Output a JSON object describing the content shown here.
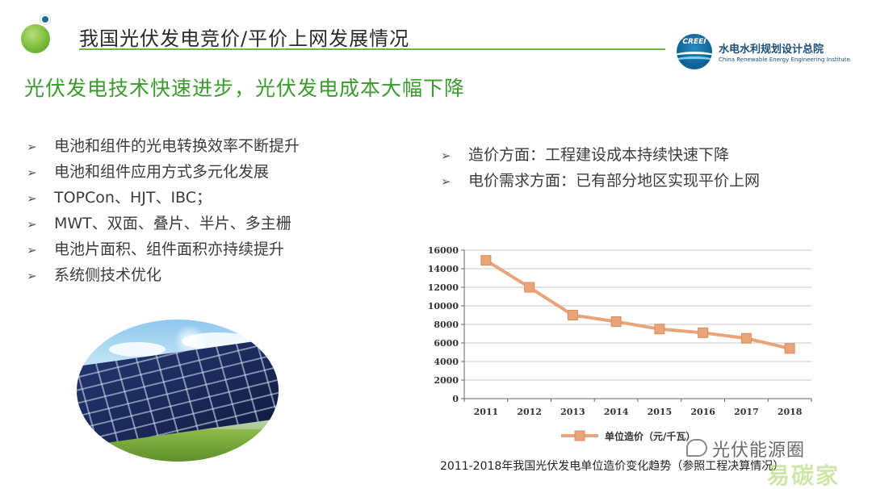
{
  "header": {
    "title": "我国光伏发电竞价/平价上网发展情况",
    "brand_name": "水电水利规划设计总院",
    "brand_en": "China Renewable Energy Engineering Institute",
    "brand_mark": "CREEI",
    "accent_color": "#79b43c"
  },
  "subtitle": "光伏发电技术快速进步，光伏发电成本大幅下降",
  "bullet_icon": "arrow-right-icon",
  "left_bullets": [
    "电池和组件的光电转换效率不断提升",
    "电池和组件应用方式多元化发展",
    "TOPCon、HJT、IBC；",
    "MWT、双面、叠片、半片、多主栅",
    "电池片面积、组件面积亦持续提升",
    "系统侧技术优化"
  ],
  "right_bullets": [
    "造价方面：工程建设成本持续快速下降",
    "电价需求方面：已有部分地区实现平价上网"
  ],
  "chart_data": {
    "type": "line",
    "x": [
      "2011",
      "2012",
      "2013",
      "2014",
      "2015",
      "2016",
      "2017",
      "2018"
    ],
    "series": [
      {
        "name": "单位造价（元/千瓦）",
        "values": [
          14900,
          12000,
          9000,
          8300,
          7500,
          7100,
          6500,
          5400
        ],
        "color": "#e9a47a"
      }
    ],
    "yticks": [
      0,
      2000,
      4000,
      6000,
      8000,
      10000,
      12000,
      14000,
      16000
    ],
    "ylim": [
      0,
      16000
    ],
    "grid": true,
    "legend_position": "bottom",
    "marker": "square"
  },
  "caption": "2011-2018年我国光伏发电单位造价变化趋势（参照工程决算情况）",
  "watermark": {
    "text": "光伏能源圈",
    "sub": "易碳家",
    "url": ".com"
  }
}
